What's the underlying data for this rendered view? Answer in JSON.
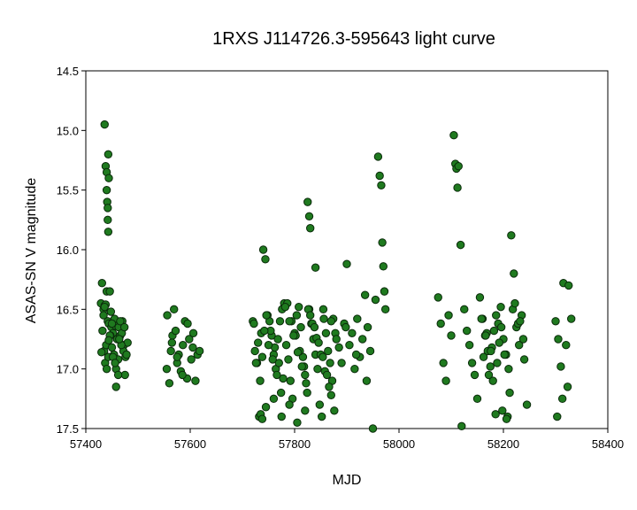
{
  "chart_data": {
    "type": "scatter",
    "title": "1RXS J114726.3-595643 light curve",
    "xlabel": "MJD",
    "ylabel": "ASAS-SN V magnitude",
    "xlim": [
      57400,
      58400
    ],
    "ylim": [
      14.5,
      17.5
    ],
    "y_inverted": true,
    "grid": false,
    "legend": "none",
    "marker_color": "#1f7a1f",
    "marker_edge_color": "#0a2a0a",
    "xticks": [
      "57400",
      "57600",
      "57800",
      "58000",
      "58200",
      "58400"
    ],
    "yticks": [
      "14.5",
      "15.0",
      "15.5",
      "16.0",
      "16.5",
      "17.0",
      "17.5"
    ],
    "series": [
      {
        "x": [
          57436,
          57438,
          57440,
          57440,
          57441,
          57442,
          57442,
          57443,
          57443,
          57444,
          57429,
          57431,
          57434,
          57436,
          57438,
          57440,
          57442,
          57444,
          57446,
          57449,
          57452,
          57455,
          57457,
          57460,
          57463,
          57466,
          57470,
          57473,
          57476,
          57480,
          57432,
          57435,
          57437,
          57439,
          57443,
          57447,
          57450,
          57454,
          57458,
          57462,
          57466,
          57469,
          57472,
          57475,
          57478,
          57434,
          57440,
          57446,
          57452,
          57458,
          57436,
          57444,
          57450,
          57456,
          57462,
          57468,
          57474,
          57430,
          57448,
          57464,
          57556,
          57560,
          57563,
          57566,
          57569,
          57572,
          57575,
          57578,
          57582,
          57586,
          57590,
          57594,
          57598,
          57602,
          57606,
          57610,
          57614,
          57618,
          57555,
          57565,
          57575,
          57585,
          57595,
          57605,
          57720,
          57724,
          57728,
          57732,
          57736,
          57740,
          57744,
          57748,
          57752,
          57756,
          57760,
          57764,
          57768,
          57772,
          57776,
          57780,
          57784,
          57788,
          57792,
          57796,
          57800,
          57804,
          57808,
          57812,
          57816,
          57820,
          57824,
          57828,
          57832,
          57836,
          57840,
          57844,
          57848,
          57852,
          57856,
          57860,
          57864,
          57868,
          57872,
          57876,
          57722,
          57730,
          57738,
          57746,
          57754,
          57762,
          57770,
          57778,
          57786,
          57794,
          57802,
          57810,
          57818,
          57826,
          57834,
          57842,
          57850,
          57858,
          57866,
          57874,
          57726,
          57734,
          57742,
          57750,
          57758,
          57766,
          57774,
          57782,
          57790,
          57798,
          57806,
          57814,
          57822,
          57830,
          57838,
          57846,
          57854,
          57862,
          57870,
          57878,
          57735,
          57738,
          57745,
          57760,
          57775,
          57790,
          57805,
          57820,
          57825,
          57828,
          57830,
          57840,
          57855,
          57870,
          57880,
          57885,
          57890,
          57895,
          57900,
          57905,
          57910,
          57915,
          57920,
          57925,
          57930,
          57935,
          57940,
          57945,
          57950,
          57955,
          57960,
          57963,
          57966,
          57968,
          57970,
          57972,
          57974,
          57898,
          57918,
          57938,
          58075,
          58080,
          58085,
          58090,
          58095,
          58100,
          58105,
          58108,
          58110,
          58112,
          58114,
          58118,
          58120,
          58125,
          58130,
          58135,
          58140,
          58145,
          58150,
          58155,
          58160,
          58165,
          58170,
          58175,
          58180,
          58185,
          58190,
          58195,
          58200,
          58205,
          58210,
          58215,
          58220,
          58225,
          58230,
          58235,
          58240,
          58245,
          58158,
          58168,
          58178,
          58188,
          58198,
          58208,
          58218,
          58228,
          58238,
          58162,
          58172,
          58182,
          58192,
          58202,
          58212,
          58222,
          58232,
          58166,
          58176,
          58186,
          58196,
          58206,
          58300,
          58305,
          58310,
          58315,
          58320,
          58325,
          58330,
          58303,
          58313,
          58323
        ],
        "y": [
          14.95,
          15.3,
          15.35,
          15.5,
          15.6,
          15.65,
          15.75,
          15.85,
          15.2,
          15.4,
          16.45,
          16.28,
          16.5,
          16.47,
          16.46,
          16.35,
          16.6,
          16.62,
          16.35,
          16.65,
          16.7,
          16.58,
          16.64,
          16.75,
          16.65,
          16.72,
          16.6,
          16.8,
          16.9,
          16.78,
          16.68,
          16.85,
          16.95,
          16.8,
          16.9,
          16.72,
          16.82,
          16.88,
          17.0,
          16.92,
          16.6,
          16.7,
          16.85,
          17.05,
          16.88,
          16.55,
          17.0,
          16.72,
          16.9,
          17.15,
          16.48,
          16.76,
          16.62,
          16.95,
          17.05,
          16.8,
          16.65,
          16.86,
          16.52,
          16.75,
          16.55,
          17.12,
          16.85,
          16.72,
          16.5,
          16.68,
          16.95,
          16.88,
          17.02,
          16.8,
          16.6,
          17.08,
          16.75,
          16.92,
          16.7,
          17.1,
          16.88,
          16.85,
          17.0,
          16.78,
          16.9,
          17.05,
          16.62,
          16.82,
          16.6,
          16.85,
          16.95,
          17.4,
          16.7,
          16.0,
          16.08,
          16.55,
          16.6,
          16.72,
          16.88,
          17.0,
          16.75,
          16.6,
          16.5,
          16.45,
          16.8,
          16.92,
          17.1,
          17.25,
          16.7,
          16.55,
          16.48,
          16.65,
          16.9,
          17.05,
          17.2,
          16.5,
          16.62,
          16.75,
          16.88,
          17.0,
          17.3,
          17.4,
          16.58,
          16.7,
          16.85,
          16.95,
          17.1,
          17.35,
          16.62,
          16.78,
          16.9,
          16.55,
          16.68,
          16.82,
          16.95,
          17.08,
          16.45,
          16.6,
          16.72,
          16.85,
          16.98,
          16.5,
          16.62,
          16.74,
          16.88,
          17.02,
          17.15,
          16.58,
          16.95,
          17.1,
          16.68,
          16.8,
          16.92,
          17.05,
          17.2,
          16.48,
          16.6,
          16.72,
          16.86,
          16.98,
          17.12,
          16.55,
          16.65,
          16.78,
          16.9,
          17.05,
          17.22,
          16.7,
          17.38,
          17.42,
          17.32,
          17.25,
          17.4,
          17.3,
          17.45,
          17.35,
          15.6,
          15.72,
          15.82,
          16.15,
          16.5,
          16.6,
          16.75,
          16.82,
          16.95,
          16.62,
          16.12,
          16.8,
          16.7,
          17.0,
          16.58,
          16.9,
          16.75,
          16.38,
          16.65,
          16.85,
          17.5,
          16.42,
          15.22,
          15.38,
          15.46,
          15.94,
          16.14,
          16.35,
          16.5,
          16.65,
          16.88,
          17.1,
          16.4,
          16.62,
          16.95,
          17.1,
          16.55,
          16.72,
          15.04,
          15.28,
          15.32,
          15.48,
          15.3,
          15.96,
          17.48,
          16.5,
          16.68,
          16.8,
          16.95,
          17.05,
          17.25,
          16.4,
          16.58,
          16.72,
          16.85,
          16.98,
          17.1,
          17.38,
          16.62,
          16.48,
          16.75,
          16.88,
          17.0,
          15.88,
          16.2,
          16.65,
          16.8,
          16.55,
          16.92,
          17.3,
          16.58,
          16.7,
          16.82,
          16.95,
          17.35,
          17.4,
          16.5,
          16.62,
          16.75,
          16.9,
          17.05,
          16.68,
          16.78,
          16.88,
          17.2,
          16.45,
          16.6,
          16.72,
          16.85,
          16.55,
          16.65,
          17.42,
          16.6,
          16.75,
          16.98,
          16.28,
          16.8,
          16.3,
          16.58,
          17.4,
          17.25,
          17.15
        ]
      }
    ]
  }
}
